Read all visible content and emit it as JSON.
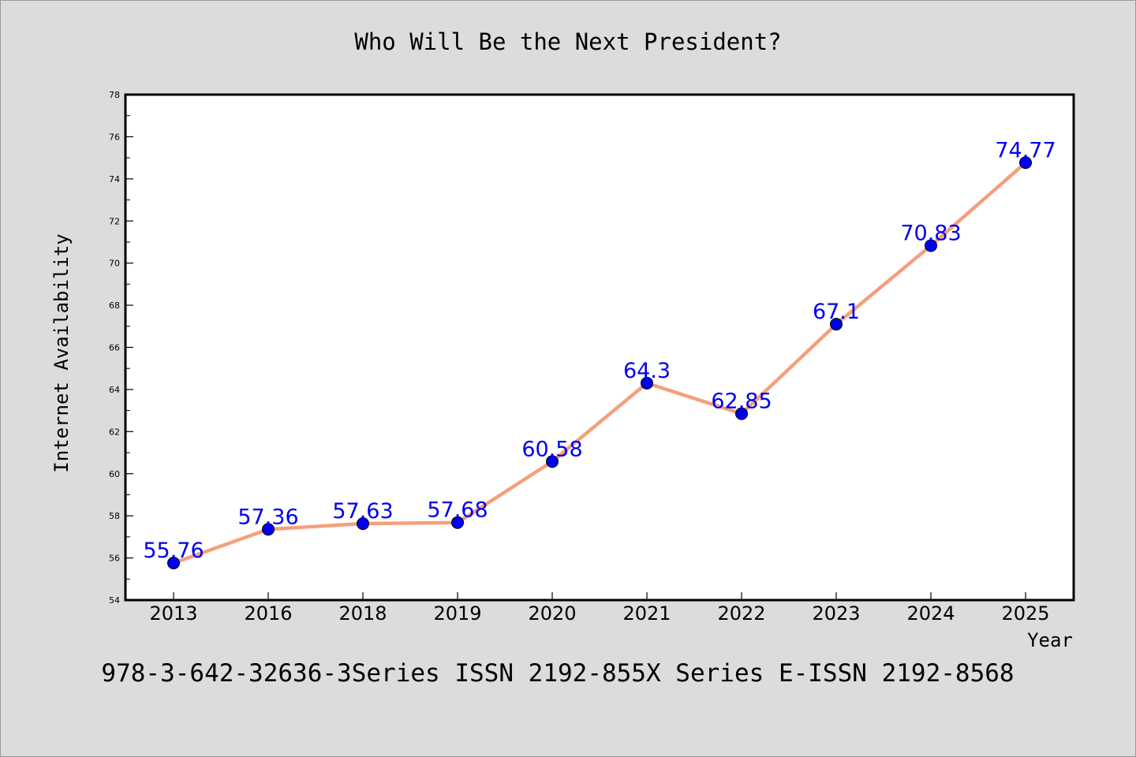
{
  "chart_data": {
    "type": "line",
    "title": "Who Will Be the Next President?",
    "xlabel": "Year",
    "ylabel": "Internet Availability",
    "categories": [
      "2013",
      "2016",
      "2018",
      "2019",
      "2020",
      "2021",
      "2022",
      "2023",
      "2024",
      "2025"
    ],
    "series": [
      {
        "values": [
          55.76,
          57.36,
          57.63,
          57.68,
          60.58,
          64.3,
          62.85,
          67.1,
          70.83,
          74.77
        ],
        "labels": [
          "55.76",
          "57.36",
          "57.63",
          "57.68",
          "60.58",
          "64.3",
          "62.85",
          "67.1",
          "70.83",
          "74.77"
        ]
      }
    ],
    "ylim": [
      54,
      78
    ],
    "yticks": [
      "54",
      "56",
      "58",
      "60",
      "62",
      "64",
      "66",
      "68",
      "70",
      "72",
      "74",
      "76",
      "78"
    ],
    "grid": false,
    "legend": "none"
  },
  "footer_text": "978-3-642-32636-3Series ISSN 2192-855X Series E-ISSN 2192-8568",
  "colors": {
    "background": "#dcdcdc",
    "plot_background": "#ffffff",
    "line": "#f4a07c",
    "marker": "#0000ee",
    "data_label": "#0000ee",
    "text": "#000000"
  }
}
